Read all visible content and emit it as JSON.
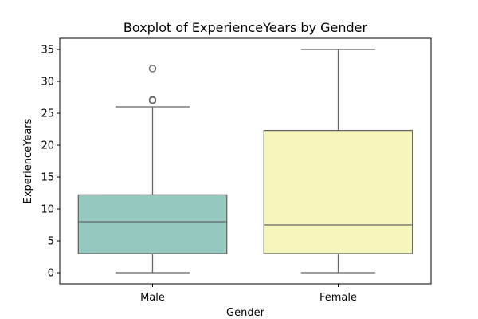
{
  "chart_data": {
    "type": "boxplot",
    "title": "Boxplot of ExperienceYears by Gender",
    "xlabel": "Gender",
    "ylabel": "ExperienceYears",
    "ylim": [
      -1.75,
      36.75
    ],
    "yticks": [
      0,
      5,
      10,
      15,
      20,
      25,
      30,
      35
    ],
    "ytick_labels": [
      "0",
      "5",
      "10",
      "15",
      "20",
      "25",
      "30",
      "35"
    ],
    "grid": false,
    "categories": [
      "Male",
      "Female"
    ],
    "boxes": [
      {
        "category": "Male",
        "whisker_low": 0,
        "q1": 3,
        "median": 8,
        "q3": 12.2,
        "whisker_high": 26,
        "outliers": [
          27,
          27.1,
          32
        ],
        "color": "#96cac1"
      },
      {
        "category": "Female",
        "whisker_low": 0,
        "q1": 3,
        "median": 7.5,
        "q3": 22.3,
        "whisker_high": 35,
        "outliers": [],
        "color": "#f6f6bc"
      }
    ],
    "line_color": "#666666"
  }
}
